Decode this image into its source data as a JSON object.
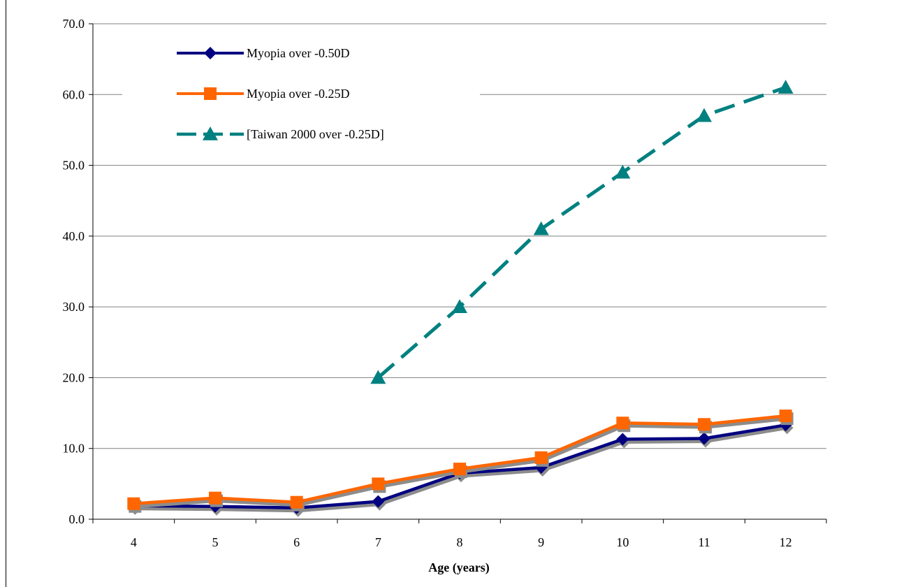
{
  "chart_data": {
    "type": "line",
    "title": "",
    "xlabel": "Age (years)",
    "ylabel": "",
    "categories": [
      "4",
      "5",
      "6",
      "7",
      "8",
      "9",
      "10",
      "11",
      "12"
    ],
    "ylim": [
      0,
      70
    ],
    "y_ticks": [
      "0.0",
      "10.0",
      "20.0",
      "30.0",
      "40.0",
      "50.0",
      "60.0",
      "70.0"
    ],
    "grid": "horizontal",
    "legend_position": "top-left",
    "series": [
      {
        "name": "Myopia over -0.50D",
        "color": "#000080",
        "marker": "diamond",
        "dashed": false,
        "values": [
          1.9,
          1.8,
          1.6,
          2.5,
          6.5,
          7.3,
          11.3,
          11.4,
          13.3
        ]
      },
      {
        "name": "Myopia over -0.25D",
        "color": "#ff6600",
        "marker": "square",
        "dashed": false,
        "values": [
          2.2,
          3.0,
          2.4,
          5.0,
          7.1,
          8.7,
          13.6,
          13.4,
          14.6
        ]
      },
      {
        "name": "[Taiwan 2000 over -0.25D]",
        "color": "#008080",
        "marker": "triangle",
        "dashed": true,
        "values": [
          null,
          null,
          null,
          20.0,
          30.0,
          41.0,
          49.0,
          57.0,
          61.0
        ]
      }
    ]
  }
}
